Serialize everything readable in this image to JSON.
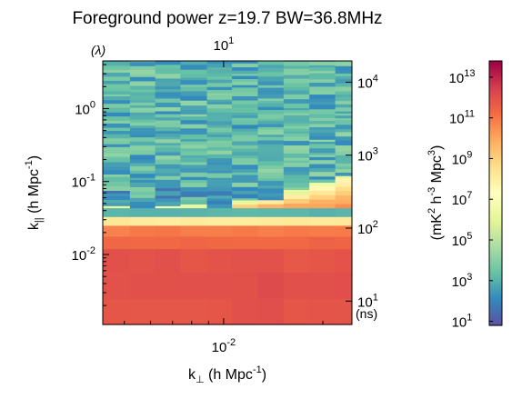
{
  "chart_data": {
    "type": "heatmap",
    "title": "Foreground power z=19.7 BW=36.8MHz",
    "xlabel": "k⊥ (h Mpc⁻¹)",
    "ylabel": "k|| (h Mpc⁻¹)",
    "top_axis_label": "(λ)",
    "right_axis_label": "(ns)",
    "colorbar_label": "(mK² h⁻³ Mpc³)",
    "x_scale": "log",
    "y_scale": "log",
    "colorbar_scale": "log",
    "xlim": [
      0.0043,
      0.0245
    ],
    "ylim": [
      0.0011,
      4.5
    ],
    "clim_log10": [
      0.8,
      13.8
    ],
    "colormap": [
      "#5e4fa2",
      "#3288bd",
      "#66c2a5",
      "#abdda4",
      "#e6f598",
      "#ffffbf",
      "#fee08b",
      "#fdae61",
      "#f46d43",
      "#d53e4f",
      "#9e0142"
    ],
    "x_ticks_bottom": [
      {
        "value": 0.01,
        "base": "10",
        "exp": "-2"
      }
    ],
    "x_ticks_top": [
      {
        "value": 0.01,
        "base": "10",
        "exp": "1"
      }
    ],
    "y_ticks_left": [
      {
        "value": 1,
        "base": "10",
        "exp": "0"
      },
      {
        "value": 0.1,
        "base": "10",
        "exp": "-1"
      },
      {
        "value": 0.01,
        "base": "10",
        "exp": "-2"
      }
    ],
    "y_ticks_right": [
      {
        "value": 2.3,
        "base": "10",
        "exp": "4"
      },
      {
        "value": 0.23,
        "base": "10",
        "exp": "3"
      },
      {
        "value": 0.023,
        "base": "10",
        "exp": "2"
      },
      {
        "value": 0.0023,
        "base": "10",
        "exp": "1"
      }
    ],
    "colorbar_ticks": [
      {
        "value": 13,
        "base": "10",
        "exp": "13"
      },
      {
        "value": 11,
        "base": "10",
        "exp": "11"
      },
      {
        "value": 9,
        "base": "10",
        "exp": "9"
      },
      {
        "value": 7,
        "base": "10",
        "exp": "7"
      },
      {
        "value": 5,
        "base": "10",
        "exp": "5"
      },
      {
        "value": 3,
        "base": "10",
        "exp": "3"
      },
      {
        "value": 1,
        "base": "10",
        "exp": "1"
      }
    ],
    "x_bins": [
      0.0043,
      0.0052,
      0.0062,
      0.0074,
      0.0089,
      0.0106,
      0.0127,
      0.0152,
      0.0182,
      0.0218,
      0.0245
    ],
    "y_bands_log10": [
      {
        "from": -2.96,
        "to": -2.6,
        "value": 11.9
      },
      {
        "from": -2.6,
        "to": -2.24,
        "value": 12.1
      },
      {
        "from": -2.24,
        "to": -1.92,
        "value": 11.9
      },
      {
        "from": -1.92,
        "to": -1.75,
        "value": 11.4
      },
      {
        "from": -1.75,
        "to": -1.6,
        "value": 10.9
      },
      {
        "from": -1.6,
        "to": -1.48,
        "value": 8.2
      },
      {
        "from": -1.48,
        "to": -1.36,
        "value": 3.1
      },
      {
        "from": -1.36,
        "to": 0.65,
        "value": 3.0
      }
    ],
    "wedge_edge_log10_k_parallel": [
      -1.44,
      -1.43,
      -1.42,
      -1.4,
      -1.36,
      -1.31,
      -1.25,
      -1.17,
      -1.06,
      -0.95
    ]
  }
}
